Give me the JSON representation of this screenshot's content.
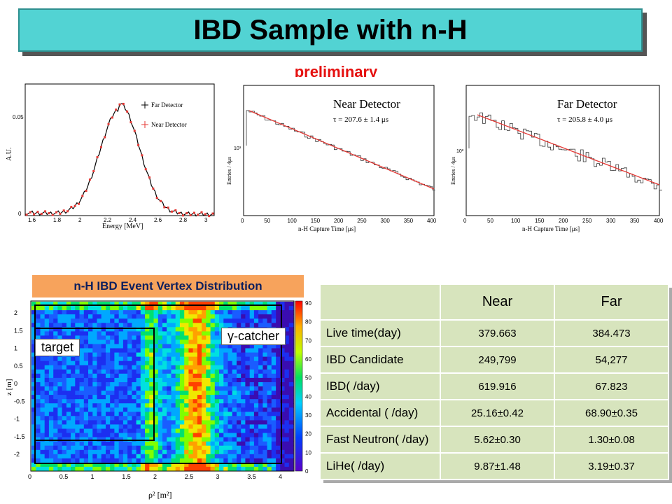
{
  "title": "IBD Sample with n-H",
  "preliminary": "preliminary",
  "energy_plot": {
    "ylabel": "A.U.",
    "xlabel": "Energy [MeV]",
    "legend": [
      "Far Detector",
      "Near Detector"
    ],
    "yticks": [
      "0",
      "0.05"
    ],
    "xticks": [
      "1.6",
      "1.8",
      "2",
      "2.2",
      "2.4",
      "2.6",
      "2.8",
      "3"
    ],
    "series_colors": [
      "#000000",
      "#e53935"
    ]
  },
  "near_plot": {
    "title": "Near Detector",
    "tau": "τ = 207.6 ± 1.4 μs",
    "ylabel": "Entries / 4μs",
    "xlabel": "n-H Capture Time [μs]",
    "ytick": "10³",
    "xticks": [
      "0",
      "50",
      "100",
      "150",
      "200",
      "250",
      "300",
      "350",
      "400"
    ]
  },
  "far_plot": {
    "title": "Far Detector",
    "tau": "τ = 205.8 ± 4.0 μs",
    "ylabel": "Entries / 4μs",
    "xlabel": "n-H Capture Time [μs]",
    "ytick": "10²",
    "xticks": [
      "0",
      "50",
      "100",
      "150",
      "200",
      "250",
      "300",
      "350",
      "400"
    ]
  },
  "vertex_plot": {
    "banner": "n-H IBD Event Vertex Distribution",
    "target_label": "target",
    "gcatcher_label": "γ-catcher",
    "ylabel": "z [m]",
    "xlabel": "ρ² [m²]",
    "yticks": [
      "2",
      "1.5",
      "1",
      "0.5",
      "0",
      "-0.5",
      "-1",
      "-1.5",
      "-2"
    ],
    "xticks": [
      "0",
      "0.5",
      "1",
      "1.5",
      "2",
      "2.5",
      "3",
      "3.5",
      "4"
    ],
    "color_ticks": [
      "90",
      "80",
      "70",
      "60",
      "50",
      "40",
      "30",
      "20",
      "10",
      "0"
    ]
  },
  "table": {
    "headers": [
      "",
      "Near",
      "Far"
    ],
    "rows": [
      {
        "label": "Live time(day)",
        "near": "379.663",
        "far": "384.473"
      },
      {
        "label": "IBD Candidate",
        "near": "249,799",
        "far": "54,277"
      },
      {
        "label": "IBD( /day)",
        "near": "619.916",
        "far": "67.823"
      },
      {
        "label": "Accidental ( /day)",
        "near": "25.16±0.42",
        "far": "68.90±0.35"
      },
      {
        "label": "Fast Neutron( /day)",
        "near": "5.62±0.30",
        "far": "1.30±0.08"
      },
      {
        "label": "LiHe( /day)",
        "near": "9.87±1.48",
        "far": "3.19±0.37"
      }
    ]
  }
}
